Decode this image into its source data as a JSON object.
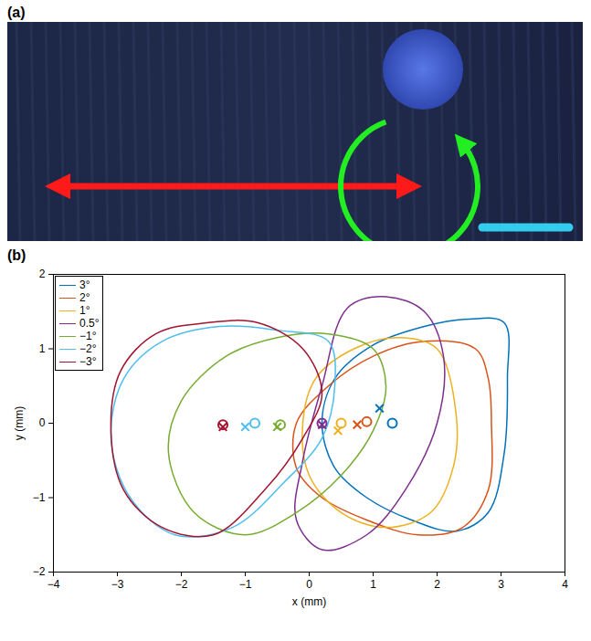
{
  "panel_a": {
    "label": "(a)"
  },
  "chart_data": {
    "panel_label": "(b)",
    "type": "line",
    "x_label": "x (mm)",
    "y_label": "y (mm)",
    "xlim": [
      -4,
      4
    ],
    "ylim": [
      -2,
      2
    ],
    "xticks": [
      {
        "value": -4,
        "label": "−4"
      },
      {
        "value": -3,
        "label": "−3"
      },
      {
        "value": -2,
        "label": "−2"
      },
      {
        "value": -1,
        "label": "−1"
      },
      0,
      1,
      2,
      3,
      4
    ],
    "yticks": [
      {
        "value": -2,
        "label": "−2"
      },
      {
        "value": -1,
        "label": "−1"
      },
      0,
      1,
      2
    ],
    "legend": "top-left",
    "series": [
      {
        "name": "3°",
        "color": "#0072BD",
        "x": [
          3.05,
          2.5,
          1.8,
          1.0,
          0.4,
          0.2,
          0.4,
          0.9,
          1.6,
          2.3,
          2.8,
          3.05,
          3.1
        ],
        "y": [
          1.35,
          1.4,
          1.3,
          1.05,
          0.6,
          0.0,
          -0.6,
          -1.0,
          -1.3,
          -1.45,
          -1.2,
          -0.4,
          0.6
        ],
        "o_point": [
          1.3,
          0.0
        ],
        "x_point": [
          1.1,
          0.2
        ]
      },
      {
        "name": "2°",
        "color": "#D95319",
        "x": [
          2.6,
          1.8,
          1.0,
          0.3,
          -0.2,
          -0.2,
          0.2,
          0.9,
          1.7,
          2.4,
          2.8,
          2.85,
          2.8
        ],
        "y": [
          1.0,
          1.1,
          0.9,
          0.5,
          0.0,
          -0.6,
          -1.0,
          -1.3,
          -1.5,
          -1.4,
          -0.9,
          0.0,
          0.6
        ],
        "o_point": [
          0.9,
          0.02
        ],
        "x_point": [
          0.75,
          -0.02
        ]
      },
      {
        "name": "1°",
        "color": "#EDB120",
        "x": [
          2.0,
          1.4,
          0.7,
          0.1,
          -0.1,
          0.0,
          0.5,
          1.2,
          1.9,
          2.25,
          2.3
        ],
        "y": [
          1.0,
          1.15,
          1.0,
          0.6,
          0.0,
          -0.7,
          -1.2,
          -1.4,
          -1.2,
          -0.6,
          0.1
        ],
        "o_point": [
          0.5,
          0.0
        ],
        "x_point": [
          0.45,
          -0.1
        ]
      },
      {
        "name": "0.5°",
        "color": "#7E2F8E",
        "x": [
          0.6,
          1.2,
          1.8,
          2.1,
          2.0,
          1.5,
          0.9,
          0.2,
          -0.2,
          -0.1,
          0.2
        ],
        "y": [
          1.55,
          1.7,
          1.5,
          0.9,
          0.0,
          -0.9,
          -1.5,
          -1.7,
          -1.3,
          -0.5,
          0.5
        ],
        "o_point": [
          0.2,
          0.0
        ],
        "x_point": [
          0.2,
          -0.02
        ]
      },
      {
        "name": "−1°",
        "color": "#77AC30",
        "x": [
          1.0,
          0.3,
          -0.5,
          -1.3,
          -2.0,
          -2.2,
          -1.8,
          -1.0,
          -0.2,
          0.5,
          1.0,
          1.2
        ],
        "y": [
          1.0,
          1.2,
          1.15,
          0.9,
          0.3,
          -0.4,
          -1.2,
          -1.5,
          -1.2,
          -0.7,
          -0.1,
          0.5
        ],
        "o_point": [
          -0.45,
          -0.02
        ],
        "x_point": [
          -0.5,
          -0.05
        ]
      },
      {
        "name": "−2°",
        "color": "#4DBEEE",
        "x": [
          0.3,
          -0.5,
          -1.4,
          -2.3,
          -2.9,
          -3.1,
          -2.8,
          -2.1,
          -1.2,
          -0.4,
          0.2,
          0.4
        ],
        "y": [
          1.1,
          1.25,
          1.3,
          1.1,
          0.6,
          -0.2,
          -1.0,
          -1.5,
          -1.4,
          -0.8,
          -0.2,
          0.5
        ],
        "o_point": [
          -0.85,
          0.0
        ],
        "x_point": [
          -1.0,
          -0.05
        ]
      },
      {
        "name": "−3°",
        "color": "#A2142F",
        "x": [
          -0.1,
          -0.8,
          -1.6,
          -2.4,
          -2.95,
          -3.1,
          -2.9,
          -2.3,
          -1.5,
          -0.7,
          -0.1,
          0.2
        ],
        "y": [
          1.0,
          1.35,
          1.35,
          1.2,
          0.7,
          -0.1,
          -0.9,
          -1.4,
          -1.5,
          -0.9,
          -0.2,
          0.4
        ],
        "o_point": [
          -1.35,
          -0.02
        ],
        "x_point": [
          -1.35,
          -0.05
        ]
      }
    ]
  }
}
